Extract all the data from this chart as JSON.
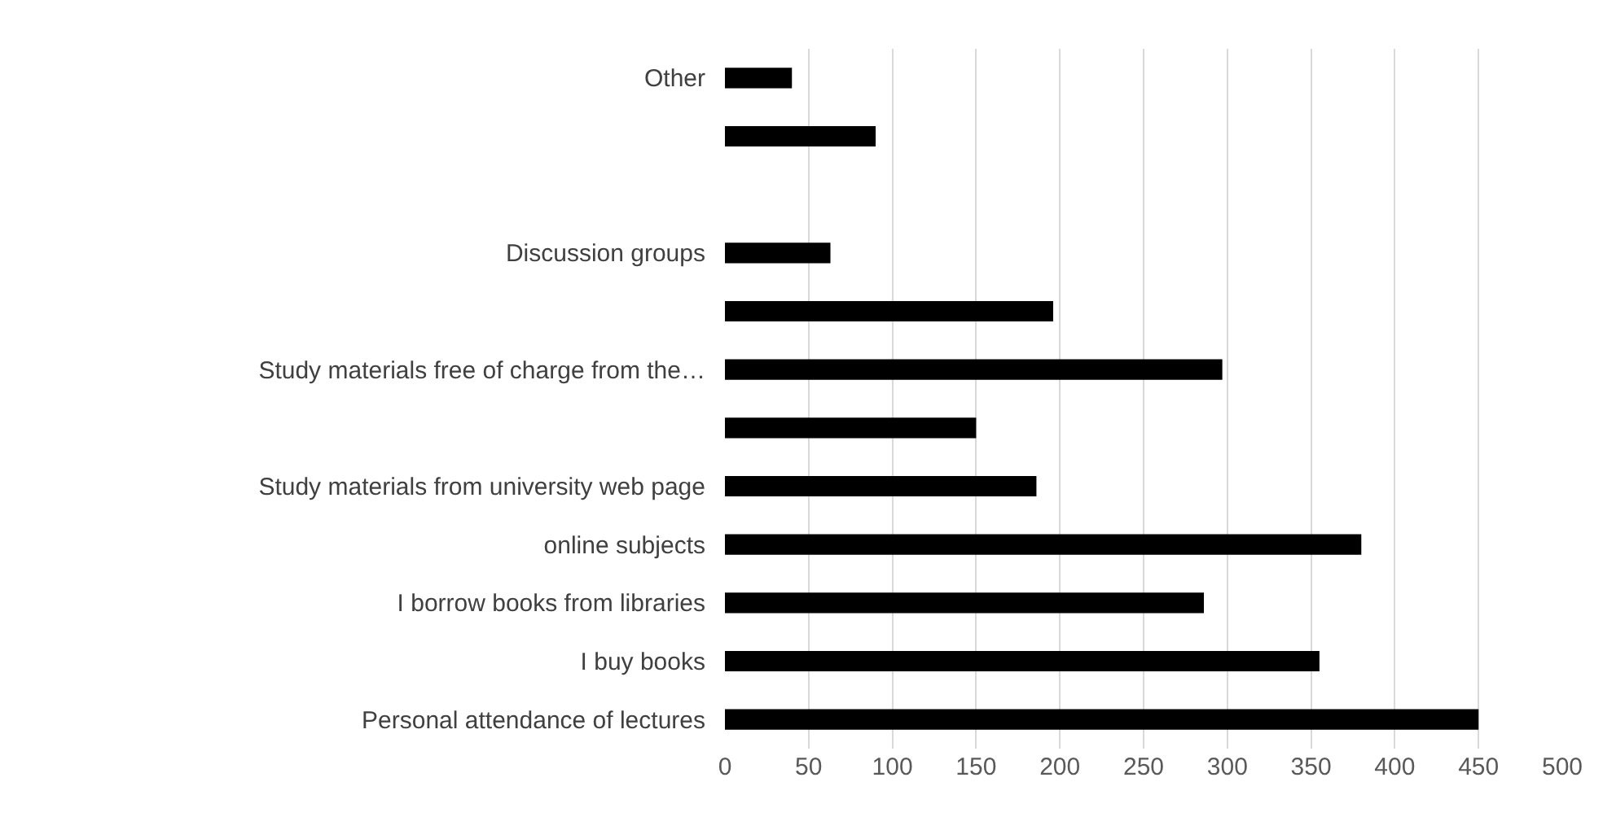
{
  "chart_data": {
    "type": "bar",
    "orientation": "horizontal",
    "categories": [
      "Other",
      null,
      null,
      "Discussion groups",
      null,
      "Study materials free of charge from the…",
      null,
      "Study materials from university web page",
      "online subjects",
      "I borrow books from libraries",
      "I buy books",
      "Personal attendance of lectures"
    ],
    "values": [
      40,
      90,
      0,
      63,
      196,
      297,
      150,
      186,
      380,
      286,
      355,
      450
    ],
    "color": "#000000",
    "xlim": [
      0,
      500
    ],
    "xticks": [
      0,
      50,
      100,
      150,
      200,
      250,
      300,
      350,
      400,
      450,
      500
    ],
    "grid": "x",
    "legend": false
  }
}
